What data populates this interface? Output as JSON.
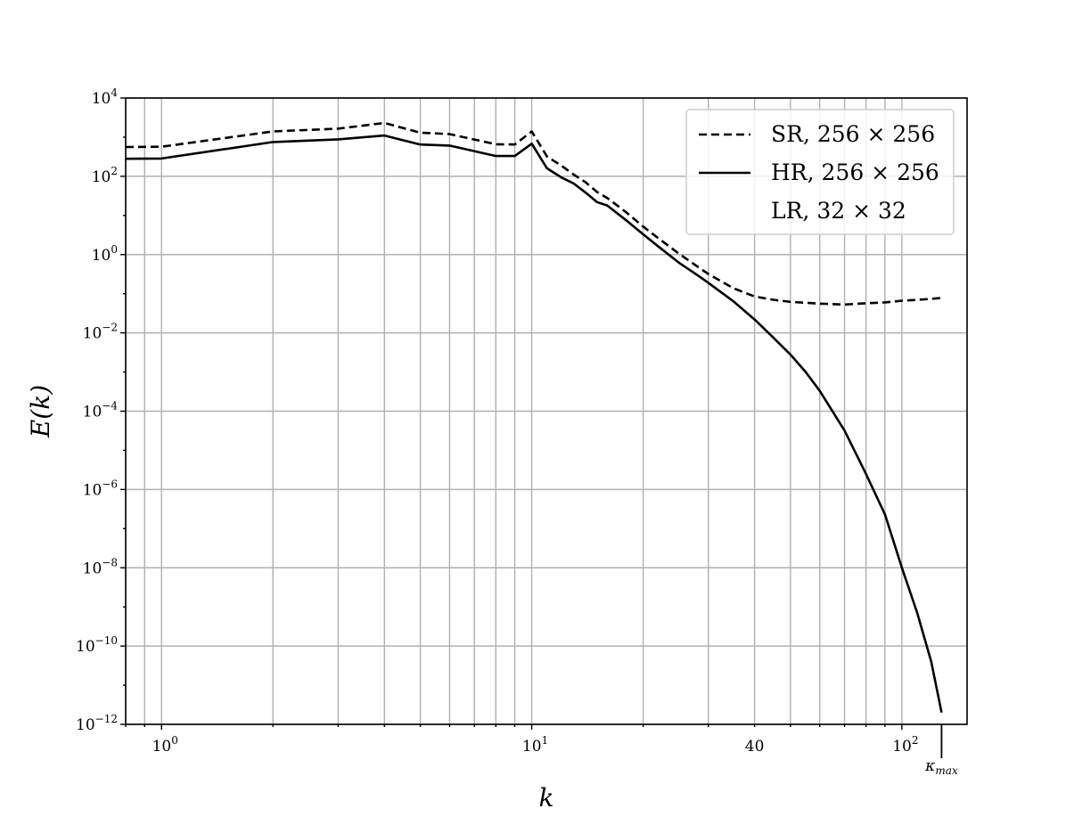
{
  "chart_data": {
    "type": "line",
    "xscale": "log",
    "yscale": "log",
    "xlim": [
      0.8,
      150
    ],
    "ylim": [
      1e-12,
      10000.0
    ],
    "grid": true,
    "legend_position": "top-right",
    "xlabel": "k",
    "ylabel": "E(k)",
    "x_ticks": [
      {
        "value": 1,
        "base": "10",
        "exp": "0"
      },
      {
        "value": 10,
        "base": "10",
        "exp": "1"
      },
      {
        "value": 40,
        "base": "40",
        "exp": ""
      },
      {
        "value": 100,
        "base": "10",
        "exp": "2"
      }
    ],
    "y_ticks": [
      {
        "value": 10000.0,
        "base": "10",
        "exp": "4"
      },
      {
        "value": 100.0,
        "base": "10",
        "exp": "2"
      },
      {
        "value": 1.0,
        "base": "10",
        "exp": "0"
      },
      {
        "value": 0.01,
        "base": "10",
        "exp": "−2"
      },
      {
        "value": 0.0001,
        "base": "10",
        "exp": "−4"
      },
      {
        "value": 1e-06,
        "base": "10",
        "exp": "−6"
      },
      {
        "value": 1e-08,
        "base": "10",
        "exp": "−8"
      },
      {
        "value": 1e-10,
        "base": "10",
        "exp": "−10"
      },
      {
        "value": 1e-12,
        "base": "10",
        "exp": "−12"
      }
    ],
    "kmax_marker": {
      "x": 128,
      "label": "κ",
      "sub": "max"
    },
    "series": [
      {
        "name": "SR, 256 × 256",
        "style": "dashed",
        "color": "#000000",
        "points": [
          [
            0.8,
            560
          ],
          [
            1,
            570
          ],
          [
            2,
            1400
          ],
          [
            3,
            1650
          ],
          [
            4,
            2300
          ],
          [
            5,
            1300
          ],
          [
            6,
            1200
          ],
          [
            8,
            660
          ],
          [
            9,
            650
          ],
          [
            10,
            1400
          ],
          [
            11,
            320
          ],
          [
            12,
            190
          ],
          [
            13,
            110
          ],
          [
            14,
            70
          ],
          [
            15,
            40
          ],
          [
            16,
            28
          ],
          [
            18,
            12
          ],
          [
            20,
            5.2
          ],
          [
            22,
            2.6
          ],
          [
            25,
            1.05
          ],
          [
            28,
            0.5
          ],
          [
            30,
            0.32
          ],
          [
            35,
            0.14
          ],
          [
            40,
            0.085
          ],
          [
            45,
            0.07
          ],
          [
            50,
            0.062
          ],
          [
            60,
            0.056
          ],
          [
            70,
            0.053
          ],
          [
            80,
            0.057
          ],
          [
            90,
            0.06
          ],
          [
            100,
            0.066
          ],
          [
            115,
            0.072
          ],
          [
            128,
            0.078
          ]
        ]
      },
      {
        "name": "HR, 256 × 256",
        "style": "solid",
        "color": "#000000",
        "points": [
          [
            0.8,
            280
          ],
          [
            1,
            285
          ],
          [
            2,
            750
          ],
          [
            3,
            880
          ],
          [
            4,
            1100
          ],
          [
            5,
            650
          ],
          [
            6,
            610
          ],
          [
            8,
            330
          ],
          [
            9,
            330
          ],
          [
            10,
            680
          ],
          [
            11,
            160
          ],
          [
            12,
            95
          ],
          [
            13,
            65
          ],
          [
            14,
            38
          ],
          [
            15,
            22
          ],
          [
            16,
            18
          ],
          [
            18,
            7.5
          ],
          [
            20,
            3.3
          ],
          [
            22,
            1.6
          ],
          [
            25,
            0.62
          ],
          [
            28,
            0.3
          ],
          [
            30,
            0.19
          ],
          [
            35,
            0.065
          ],
          [
            40,
            0.022
          ],
          [
            45,
            0.0075
          ],
          [
            50,
            0.0028
          ],
          [
            55,
            0.001
          ],
          [
            60,
            0.00033
          ],
          [
            70,
            3.2e-05
          ],
          [
            80,
            2.5e-06
          ],
          [
            90,
            2.3e-07
          ],
          [
            100,
            1e-08
          ],
          [
            110,
            7e-10
          ],
          [
            120,
            4e-11
          ],
          [
            128,
            2e-12
          ]
        ]
      },
      {
        "name": "LR, 32 × 32",
        "style": "none",
        "color": "#000000",
        "points": []
      }
    ]
  }
}
